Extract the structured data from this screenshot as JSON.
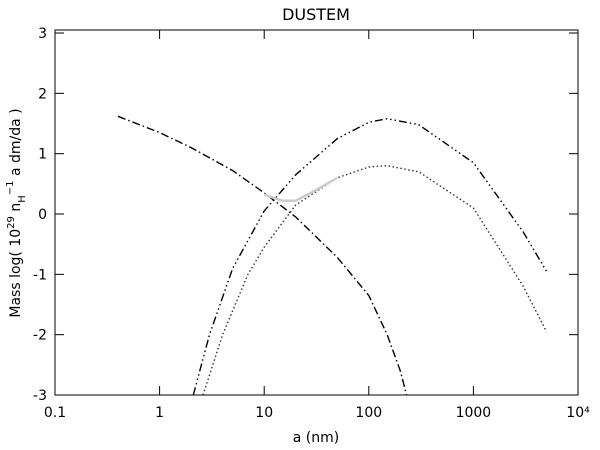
{
  "chart_data": {
    "type": "line",
    "title": "DUSTEM",
    "xlabel": "a (nm)",
    "ylabel": [
      "Mass log( 10",
      "29",
      " n",
      "H",
      "−1",
      " a dm/da )"
    ],
    "xscale": "log",
    "xlim": [
      0.1,
      10000
    ],
    "ylim": [
      -3,
      3.05
    ],
    "xticks": [
      0.1,
      1,
      10,
      100,
      1000,
      {
        "value": 10000,
        "label": "10⁴"
      }
    ],
    "yticks": [
      -3,
      -2,
      -1,
      0,
      1,
      2,
      3
    ],
    "grid": false,
    "series": [
      {
        "color": "#000000",
        "dash": "dash-dot",
        "x": [
          0.4,
          1,
          2,
          5,
          10,
          20,
          50,
          100,
          150,
          200,
          230
        ],
        "values": [
          1.62,
          1.35,
          1.1,
          0.72,
          0.35,
          -0.05,
          -0.72,
          -1.35,
          -2.0,
          -2.6,
          -3
        ]
      },
      {
        "color": "#000000",
        "dash": "dash-dot-dot-dot",
        "x": [
          2.1,
          3,
          5,
          10,
          20,
          50,
          100,
          150,
          300,
          1000,
          3000,
          5000
        ],
        "values": [
          -3,
          -2,
          -0.9,
          0.05,
          0.65,
          1.25,
          1.52,
          1.58,
          1.48,
          0.85,
          -0.3,
          -0.95
        ]
      },
      {
        "color": "#333333",
        "dash": "dotted",
        "x": [
          2.6,
          4,
          7,
          10,
          20,
          50,
          100,
          150,
          300,
          1000,
          3000,
          5000
        ],
        "values": [
          -3,
          -2,
          -1,
          -0.55,
          0.15,
          0.6,
          0.78,
          0.8,
          0.7,
          0.1,
          -1.2,
          -1.95
        ]
      },
      {
        "color": "#cccccc",
        "dash": "solid",
        "x": [
          10,
          15,
          20,
          30,
          50
        ],
        "values": [
          0.32,
          0.22,
          0.22,
          0.38,
          0.6
        ]
      }
    ]
  }
}
